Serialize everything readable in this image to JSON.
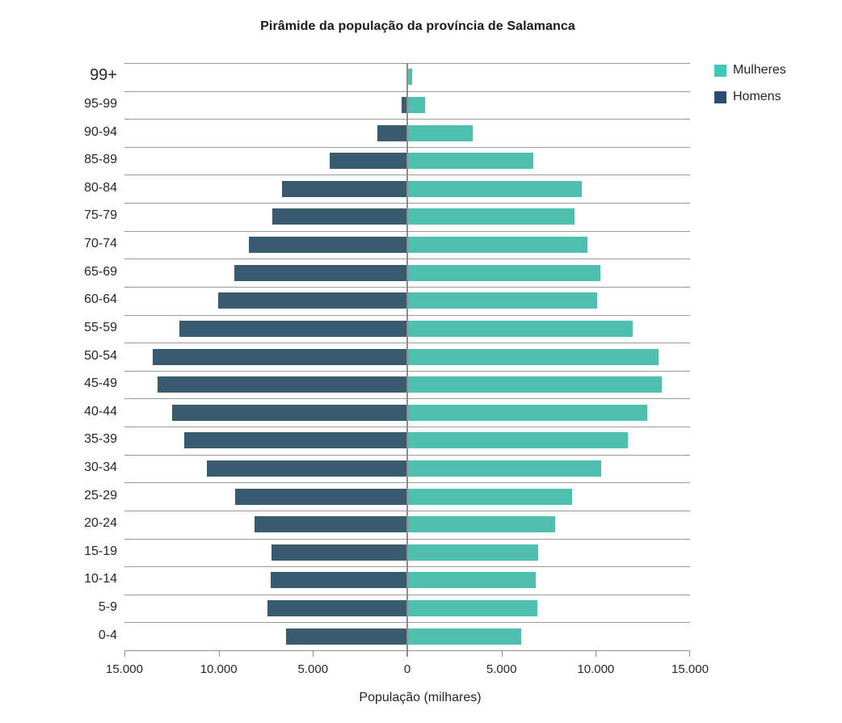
{
  "title": "Pirâmide da população da província de Salamanca",
  "legend": {
    "items": [
      {
        "label": "Mulheres",
        "swatch_color": "#3EC8B5"
      },
      {
        "label": "Homens",
        "swatch_color": "#2C4B70"
      }
    ]
  },
  "colors": {
    "bar_women": "#4FBFB0",
    "bar_men": "#3A5B6F",
    "gridline": "#9a9a9a",
    "axis": "#8d8d8d",
    "text": "#262626"
  },
  "chart_data": {
    "type": "bar",
    "subtype": "population-pyramid",
    "title": "Pirâmide da população da província de Salamanca",
    "xlabel": "População (milhares)",
    "ylabel": "",
    "xlim": [
      -15000,
      15000
    ],
    "grid": "horizontal",
    "legend_position": "top-right",
    "categories": [
      "99+",
      "95-99",
      "90-94",
      "85-89",
      "80-84",
      "75-79",
      "70-74",
      "65-69",
      "60-64",
      "55-59",
      "50-54",
      "45-49",
      "40-44",
      "35-39",
      "30-34",
      "25-29",
      "20-24",
      "15-19",
      "10-14",
      "5-9",
      "0-4"
    ],
    "series": [
      {
        "name": "Homens",
        "side": "left",
        "color": "#3A5B6F",
        "values": [
          60,
          290,
          1570,
          4100,
          6660,
          7150,
          8400,
          9160,
          10040,
          12070,
          13500,
          13230,
          12480,
          11830,
          10620,
          9120,
          8090,
          7190,
          7250,
          7410,
          6410
        ]
      },
      {
        "name": "Mulheres",
        "side": "right",
        "color": "#4FBFB0",
        "values": [
          240,
          930,
          3460,
          6690,
          9270,
          8880,
          9560,
          10240,
          10070,
          11960,
          13340,
          13520,
          12710,
          11690,
          10300,
          8760,
          7860,
          6930,
          6830,
          6890,
          6030
        ]
      }
    ],
    "x_ticks": [
      {
        "value": -15000,
        "label": "15.000"
      },
      {
        "value": -10000,
        "label": "10.000"
      },
      {
        "value": -5000,
        "label": "5.000"
      },
      {
        "value": 0,
        "label": "0"
      },
      {
        "value": 5000,
        "label": "5.000"
      },
      {
        "value": 10000,
        "label": "10.000"
      },
      {
        "value": 15000,
        "label": "15.000"
      }
    ]
  }
}
